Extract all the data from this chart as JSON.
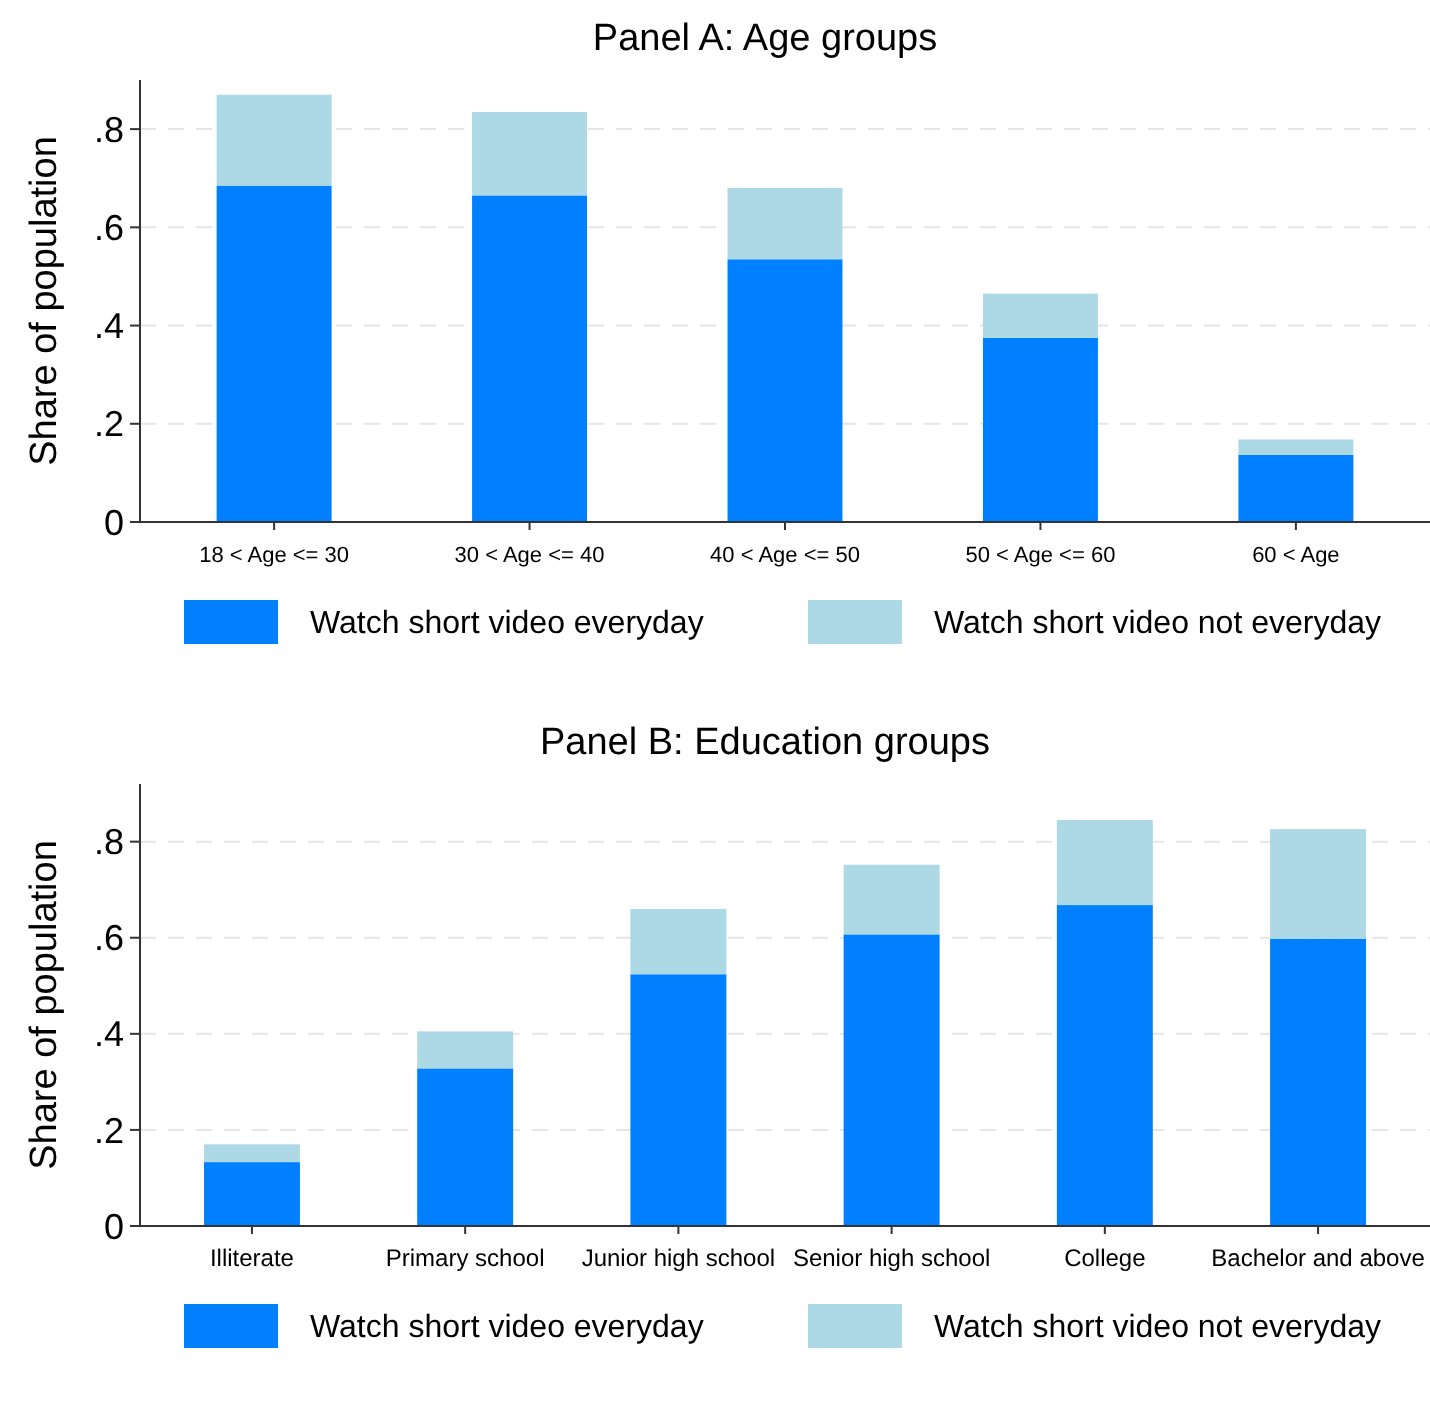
{
  "chart_data": [
    {
      "type": "bar",
      "title": "Panel A: Age groups",
      "ylabel": "Share of population",
      "categories": [
        "18 < Age <= 30",
        "30 < Age <= 40",
        "40 < Age <= 50",
        "50 < Age <= 60",
        "60 < Age"
      ],
      "stacked": true,
      "ylim": [
        0,
        0.9
      ],
      "yticks": [
        0,
        {
          "value": 0.2,
          "label": ".2"
        },
        {
          "value": 0.4,
          "label": ".4"
        },
        {
          "value": 0.6,
          "label": ".6"
        },
        {
          "value": 0.8,
          "label": ".8"
        }
      ],
      "grid": "y",
      "legend": "bottom",
      "series": [
        {
          "name": "Watch short video everyday",
          "color": "#0080ff",
          "values": [
            0.685,
            0.665,
            0.535,
            0.375,
            0.137
          ]
        },
        {
          "name": "Watch short video not everyday",
          "color": "#add8e6",
          "values": [
            0.185,
            0.17,
            0.145,
            0.09,
            0.031
          ]
        }
      ]
    },
    {
      "type": "bar",
      "title": "Panel B: Education groups",
      "ylabel": "Share of population",
      "categories": [
        "Illiterate",
        "Primary school",
        "Junior high school",
        "Senior high school",
        "College",
        "Bachelor and above"
      ],
      "stacked": true,
      "ylim": [
        0,
        0.92
      ],
      "yticks": [
        0,
        {
          "value": 0.2,
          "label": ".2"
        },
        {
          "value": 0.4,
          "label": ".4"
        },
        {
          "value": 0.6,
          "label": ".6"
        },
        {
          "value": 0.8,
          "label": ".8"
        }
      ],
      "grid": "y",
      "legend": "bottom",
      "series": [
        {
          "name": "Watch short video everyday",
          "color": "#0080ff",
          "values": [
            0.133,
            0.328,
            0.524,
            0.607,
            0.668,
            0.598
          ]
        },
        {
          "name": "Watch short video not everyday",
          "color": "#add8e6",
          "values": [
            0.037,
            0.077,
            0.136,
            0.145,
            0.177,
            0.228
          ]
        }
      ]
    }
  ]
}
